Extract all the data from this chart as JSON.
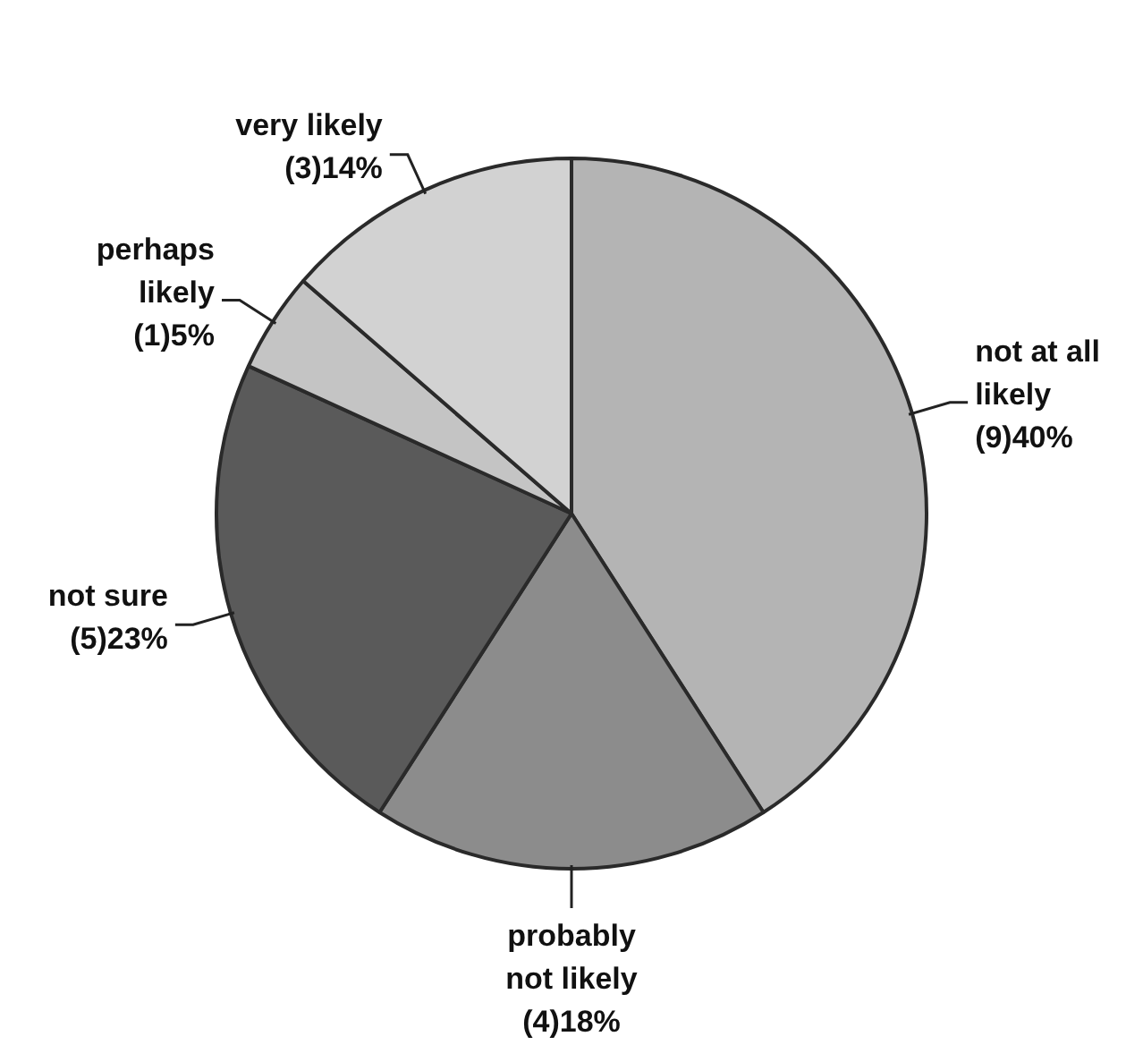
{
  "chart_data": {
    "type": "pie",
    "categories": [
      "not at all likely",
      "probably not likely",
      "not sure",
      "perhaps likely",
      "very likely"
    ],
    "values": [
      9,
      4,
      5,
      1,
      3
    ],
    "value_labels": [
      "(9)40%",
      "(4)18%",
      "(5)23%",
      "(1)5%",
      "(3)14%"
    ],
    "colors": [
      "#b4b4b4",
      "#8c8c8c",
      "#5a5a5a",
      "#c4c4c4",
      "#d2d2d2"
    ]
  }
}
